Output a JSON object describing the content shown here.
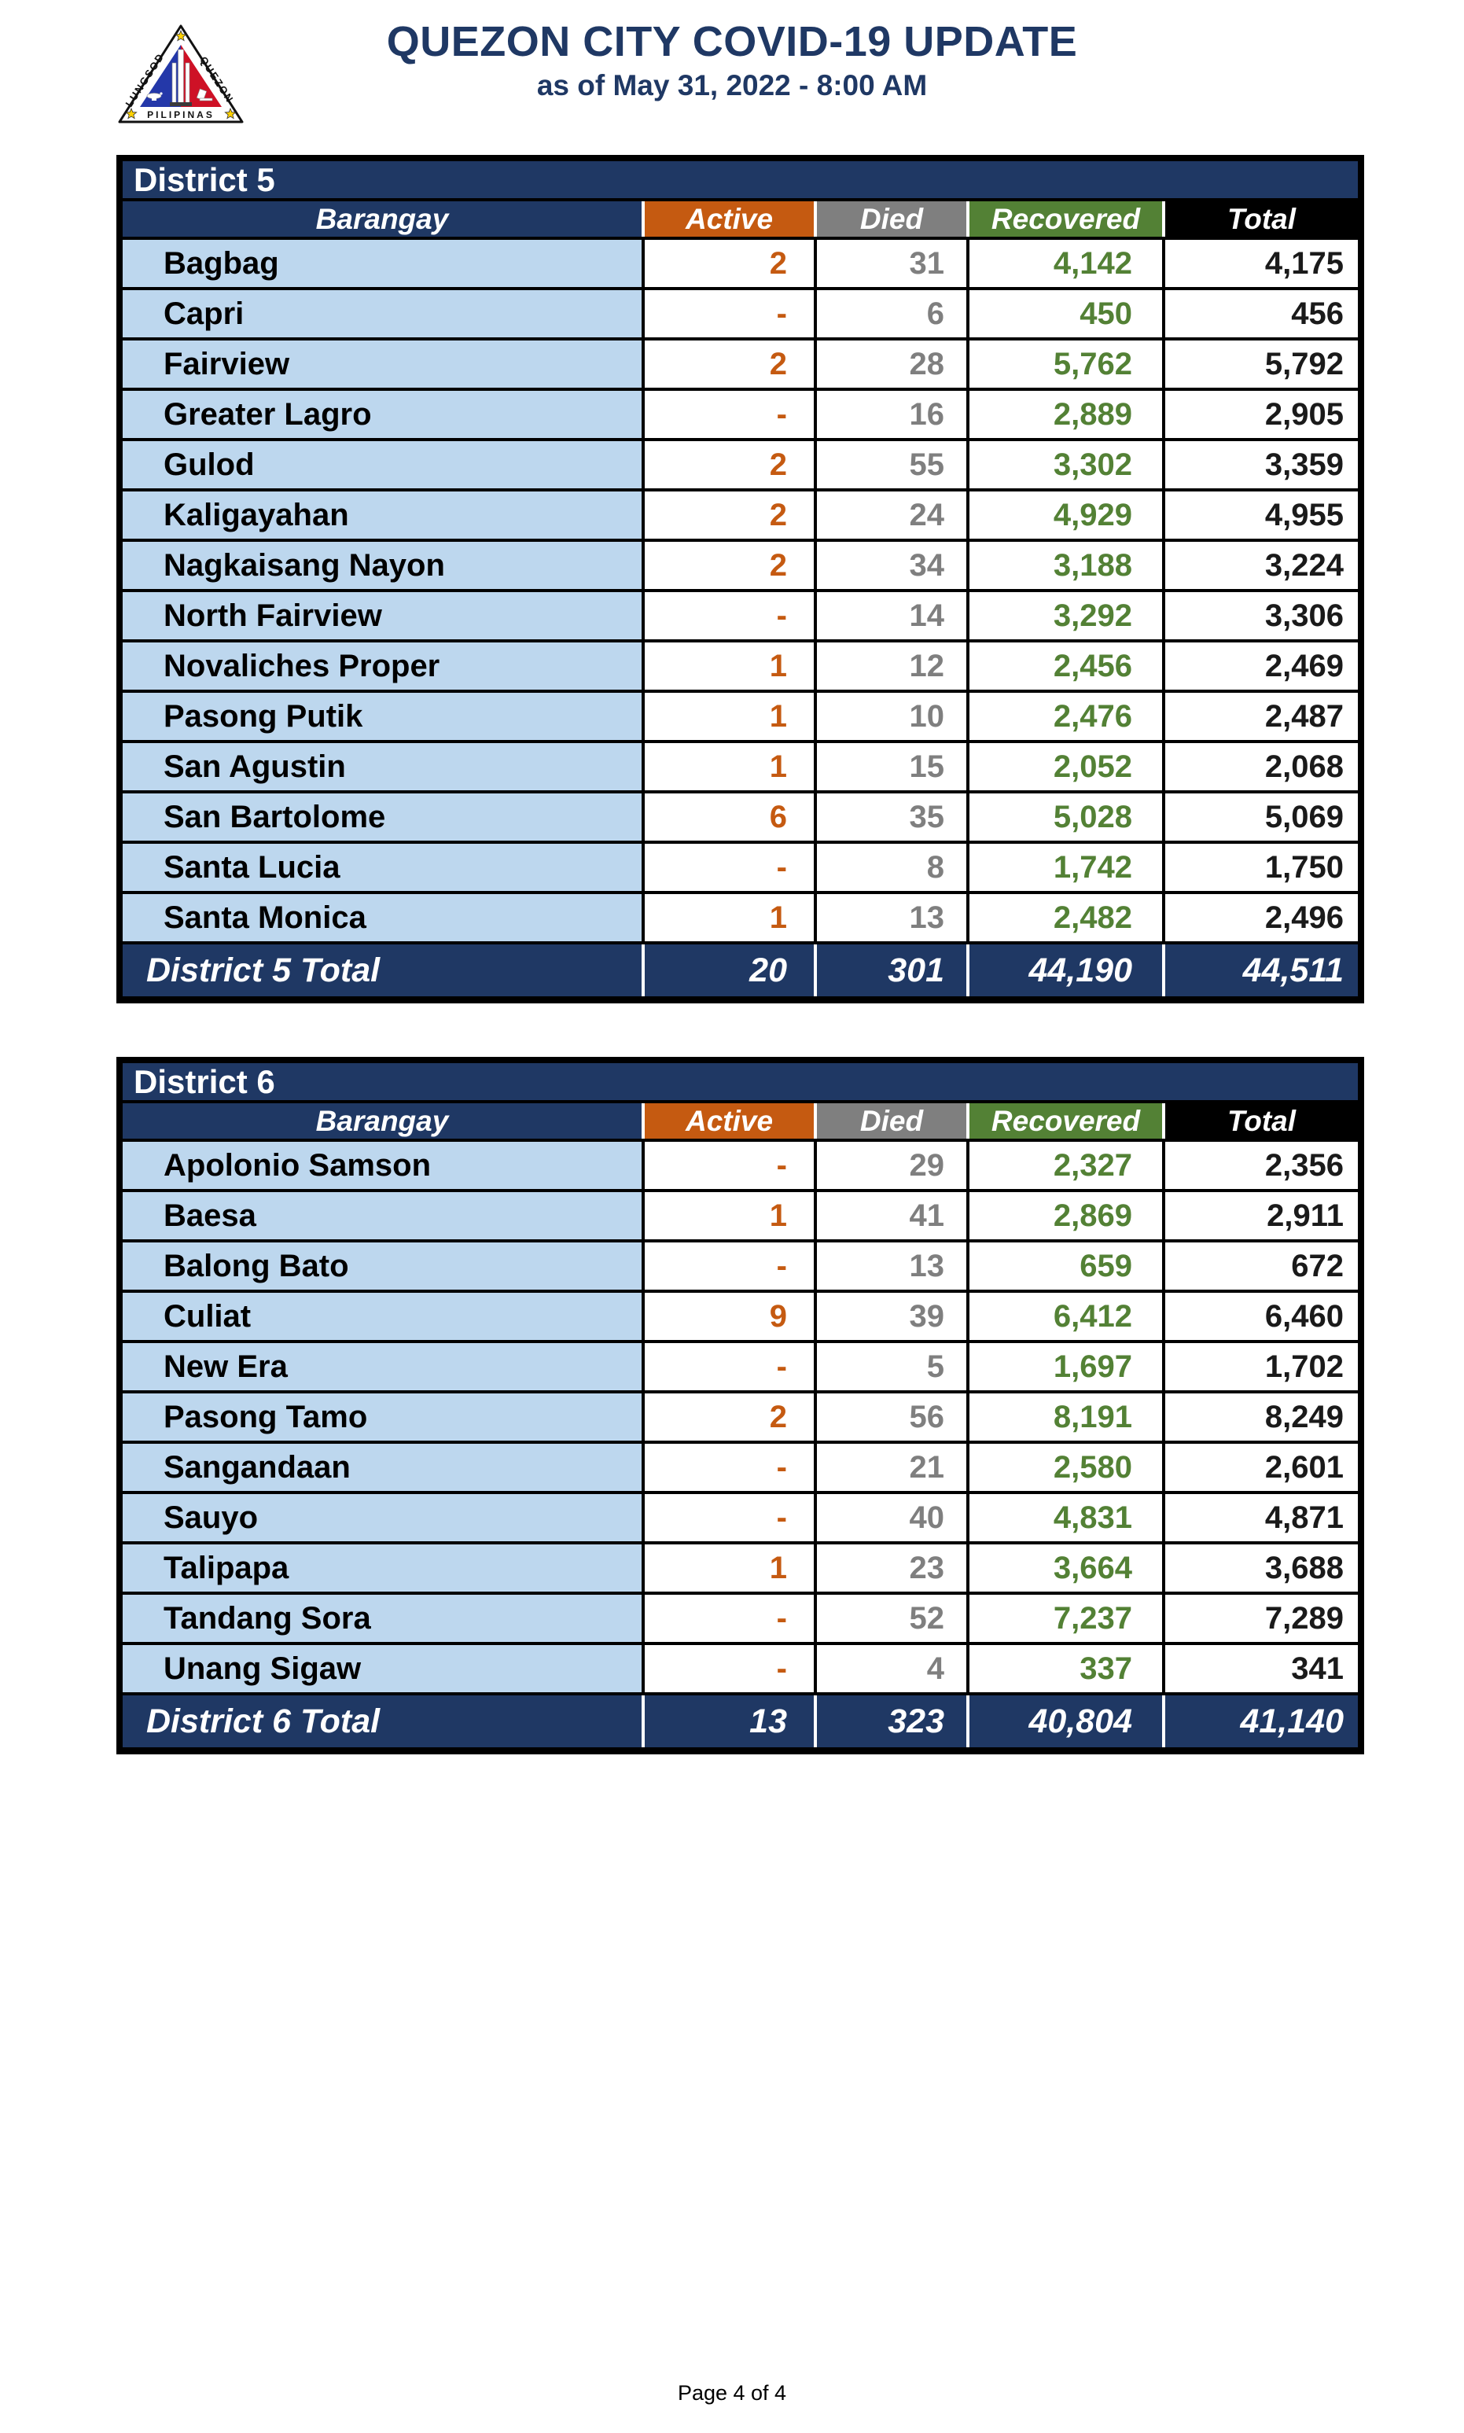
{
  "header": {
    "title": "QUEZON CITY COVID-19 UPDATE",
    "subtitle": "as of May 31, 2022 - 8:00 AM",
    "logo": {
      "left_text": "LUNGSOD",
      "right_text": "QUEZON",
      "bottom_text": "PILIPINAS"
    }
  },
  "columns": [
    "Barangay",
    "Active",
    "Died",
    "Recovered",
    "Total"
  ],
  "colors": {
    "navy": "#1F3864",
    "active_orange": "#C55A11",
    "died_gray": "#7F7F7F",
    "recovered_green": "#538135",
    "total_black": "#000000",
    "row_light_blue": "#BDD7EE"
  },
  "tables": [
    {
      "district": "District 5",
      "rows": [
        {
          "barangay": "Bagbag",
          "active": "2",
          "died": "31",
          "recovered": "4,142",
          "total": "4,175"
        },
        {
          "barangay": "Capri",
          "active": "-",
          "died": "6",
          "recovered": "450",
          "total": "456"
        },
        {
          "barangay": "Fairview",
          "active": "2",
          "died": "28",
          "recovered": "5,762",
          "total": "5,792"
        },
        {
          "barangay": "Greater Lagro",
          "active": "-",
          "died": "16",
          "recovered": "2,889",
          "total": "2,905"
        },
        {
          "barangay": "Gulod",
          "active": "2",
          "died": "55",
          "recovered": "3,302",
          "total": "3,359"
        },
        {
          "barangay": "Kaligayahan",
          "active": "2",
          "died": "24",
          "recovered": "4,929",
          "total": "4,955"
        },
        {
          "barangay": "Nagkaisang Nayon",
          "active": "2",
          "died": "34",
          "recovered": "3,188",
          "total": "3,224"
        },
        {
          "barangay": "North Fairview",
          "active": "-",
          "died": "14",
          "recovered": "3,292",
          "total": "3,306"
        },
        {
          "barangay": "Novaliches Proper",
          "active": "1",
          "died": "12",
          "recovered": "2,456",
          "total": "2,469"
        },
        {
          "barangay": "Pasong Putik",
          "active": "1",
          "died": "10",
          "recovered": "2,476",
          "total": "2,487"
        },
        {
          "barangay": "San Agustin",
          "active": "1",
          "died": "15",
          "recovered": "2,052",
          "total": "2,068"
        },
        {
          "barangay": "San Bartolome",
          "active": "6",
          "died": "35",
          "recovered": "5,028",
          "total": "5,069"
        },
        {
          "barangay": "Santa Lucia",
          "active": "-",
          "died": "8",
          "recovered": "1,742",
          "total": "1,750"
        },
        {
          "barangay": "Santa Monica",
          "active": "1",
          "died": "13",
          "recovered": "2,482",
          "total": "2,496"
        }
      ],
      "total": {
        "label": "District 5 Total",
        "active": "20",
        "died": "301",
        "recovered": "44,190",
        "total": "44,511"
      }
    },
    {
      "district": "District 6",
      "rows": [
        {
          "barangay": "Apolonio Samson",
          "active": "-",
          "died": "29",
          "recovered": "2,327",
          "total": "2,356"
        },
        {
          "barangay": "Baesa",
          "active": "1",
          "died": "41",
          "recovered": "2,869",
          "total": "2,911"
        },
        {
          "barangay": "Balong Bato",
          "active": "-",
          "died": "13",
          "recovered": "659",
          "total": "672"
        },
        {
          "barangay": "Culiat",
          "active": "9",
          "died": "39",
          "recovered": "6,412",
          "total": "6,460"
        },
        {
          "barangay": "New Era",
          "active": "-",
          "died": "5",
          "recovered": "1,697",
          "total": "1,702"
        },
        {
          "barangay": "Pasong Tamo",
          "active": "2",
          "died": "56",
          "recovered": "8,191",
          "total": "8,249"
        },
        {
          "barangay": "Sangandaan",
          "active": "-",
          "died": "21",
          "recovered": "2,580",
          "total": "2,601"
        },
        {
          "barangay": "Sauyo",
          "active": "-",
          "died": "40",
          "recovered": "4,831",
          "total": "4,871"
        },
        {
          "barangay": "Talipapa",
          "active": "1",
          "died": "23",
          "recovered": "3,664",
          "total": "3,688"
        },
        {
          "barangay": "Tandang Sora",
          "active": "-",
          "died": "52",
          "recovered": "7,237",
          "total": "7,289"
        },
        {
          "barangay": "Unang Sigaw",
          "active": "-",
          "died": "4",
          "recovered": "337",
          "total": "341"
        }
      ],
      "total": {
        "label": "District 6 Total",
        "active": "13",
        "died": "323",
        "recovered": "40,804",
        "total": "41,140"
      }
    }
  ],
  "footer": {
    "page": "Page 4 of 4"
  }
}
